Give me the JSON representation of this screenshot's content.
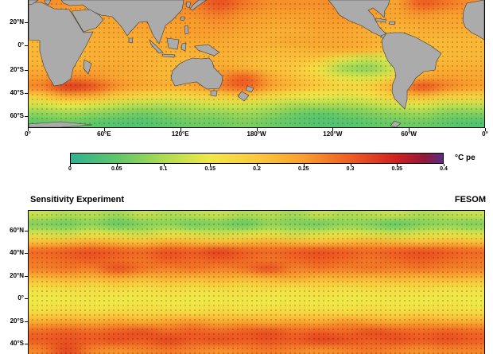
{
  "panel_top": {
    "y_ticks": [
      {
        "label": "20°N",
        "pos": 0.174
      },
      {
        "label": "0°",
        "pos": 0.354
      },
      {
        "label": "20°S",
        "pos": 0.546
      },
      {
        "label": "40°S",
        "pos": 0.727
      },
      {
        "label": "60°S",
        "pos": 0.907
      }
    ],
    "x_ticks": [
      {
        "label": "0°",
        "pos": 0.0
      },
      {
        "label": "60°E",
        "pos": 0.1667
      },
      {
        "label": "120°E",
        "pos": 0.3333
      },
      {
        "label": "180°W",
        "pos": 0.5
      },
      {
        "label": "120°W",
        "pos": 0.6667
      },
      {
        "label": "60°W",
        "pos": 0.8333
      },
      {
        "label": "0°",
        "pos": 1.0
      }
    ]
  },
  "colorbar": {
    "min": 0,
    "max": 0.4,
    "unit_label": "°C pe",
    "ticks": [
      {
        "label": "0",
        "value": 0
      },
      {
        "label": "0.05",
        "value": 0.05
      },
      {
        "label": "0.1",
        "value": 0.1
      },
      {
        "label": "0.15",
        "value": 0.15
      },
      {
        "label": "0.2",
        "value": 0.2
      },
      {
        "label": "0.25",
        "value": 0.25
      },
      {
        "label": "0.3",
        "value": 0.3
      },
      {
        "label": "0.35",
        "value": 0.35
      },
      {
        "label": "0.4",
        "value": 0.4
      }
    ],
    "stops": [
      {
        "v": 0.0,
        "color": "#2db391"
      },
      {
        "v": 0.05,
        "color": "#5fc768"
      },
      {
        "v": 0.1,
        "color": "#aedb52"
      },
      {
        "v": 0.15,
        "color": "#f0e847"
      },
      {
        "v": 0.2,
        "color": "#fbc93c"
      },
      {
        "v": 0.25,
        "color": "#f99e2d"
      },
      {
        "v": 0.3,
        "color": "#ef5d22"
      },
      {
        "v": 0.35,
        "color": "#d1211e"
      },
      {
        "v": 0.38,
        "color": "#93173a"
      },
      {
        "v": 0.4,
        "color": "#5b2b86"
      }
    ]
  },
  "panel_bottom": {
    "title": "Sensitivity Experiment",
    "model_label": "FESOM",
    "y_ticks": [
      {
        "label": "60°N",
        "pos": 0.144
      },
      {
        "label": "40°N",
        "pos": 0.301
      },
      {
        "label": "20°N",
        "pos": 0.458
      },
      {
        "label": "0°",
        "pos": 0.615
      },
      {
        "label": "20°S",
        "pos": 0.772
      },
      {
        "label": "40°S",
        "pos": 0.929
      }
    ]
  },
  "chart_data": [
    {
      "type": "heatmap",
      "panel": "top",
      "title": "",
      "colorbar_label": "°C pe",
      "value_range": [
        0,
        0.4
      ],
      "lon_centers": [
        10,
        30,
        50,
        70,
        90,
        110,
        130,
        150,
        170,
        190,
        210,
        230,
        250,
        270,
        290,
        310,
        330,
        350
      ],
      "lat_centers": [
        36,
        28,
        20,
        12,
        4,
        -4,
        -12,
        -20,
        -28,
        -36,
        -44,
        -52,
        -60,
        -68
      ],
      "grid": [
        [
          0.26,
          0.26,
          0.25,
          0.25,
          0.26,
          0.26,
          0.27,
          0.31,
          0.28,
          0.26,
          0.26,
          0.26,
          0.27,
          0.26,
          0.24,
          0.3,
          0.28,
          0.26
        ],
        [
          0.25,
          0.24,
          0.24,
          0.25,
          0.25,
          0.26,
          0.26,
          0.28,
          0.26,
          0.25,
          0.25,
          0.25,
          0.26,
          0.25,
          0.24,
          0.26,
          0.25,
          0.25
        ],
        [
          0.24,
          0.23,
          0.24,
          0.24,
          0.25,
          0.25,
          0.25,
          0.26,
          0.25,
          0.24,
          0.24,
          0.25,
          0.25,
          0.24,
          0.23,
          0.24,
          0.24,
          0.24
        ],
        [
          0.23,
          0.22,
          0.23,
          0.24,
          0.24,
          0.24,
          0.25,
          0.25,
          0.24,
          0.23,
          0.23,
          0.24,
          0.24,
          0.23,
          0.22,
          0.23,
          0.23,
          0.23
        ],
        [
          0.22,
          0.22,
          0.23,
          0.23,
          0.23,
          0.24,
          0.24,
          0.24,
          0.23,
          0.23,
          0.24,
          0.24,
          0.24,
          0.23,
          0.22,
          0.22,
          0.22,
          0.22
        ],
        [
          0.22,
          0.22,
          0.23,
          0.23,
          0.23,
          0.23,
          0.23,
          0.23,
          0.23,
          0.22,
          0.22,
          0.23,
          0.23,
          0.22,
          0.2,
          0.21,
          0.22,
          0.22
        ],
        [
          0.22,
          0.22,
          0.23,
          0.23,
          0.23,
          0.22,
          0.22,
          0.23,
          0.22,
          0.21,
          0.21,
          0.2,
          0.14,
          0.12,
          0.15,
          0.21,
          0.22,
          0.22
        ],
        [
          0.23,
          0.23,
          0.24,
          0.24,
          0.23,
          0.22,
          0.22,
          0.24,
          0.23,
          0.21,
          0.2,
          0.16,
          0.09,
          0.08,
          0.13,
          0.22,
          0.23,
          0.23
        ],
        [
          0.25,
          0.27,
          0.26,
          0.24,
          0.23,
          0.22,
          0.23,
          0.26,
          0.3,
          0.24,
          0.21,
          0.18,
          0.14,
          0.13,
          0.18,
          0.24,
          0.25,
          0.24
        ],
        [
          0.27,
          0.33,
          0.31,
          0.26,
          0.24,
          0.23,
          0.24,
          0.27,
          0.3,
          0.25,
          0.22,
          0.2,
          0.18,
          0.19,
          0.24,
          0.31,
          0.27,
          0.25
        ],
        [
          0.2,
          0.25,
          0.24,
          0.2,
          0.18,
          0.17,
          0.18,
          0.2,
          0.21,
          0.18,
          0.16,
          0.15,
          0.14,
          0.16,
          0.2,
          0.23,
          0.2,
          0.19
        ],
        [
          0.13,
          0.15,
          0.14,
          0.12,
          0.11,
          0.11,
          0.12,
          0.13,
          0.13,
          0.12,
          0.1,
          0.1,
          0.1,
          0.11,
          0.13,
          0.14,
          0.12,
          0.12
        ],
        [
          0.08,
          0.09,
          0.08,
          0.07,
          0.06,
          0.07,
          0.08,
          0.08,
          0.09,
          0.08,
          0.06,
          0.05,
          0.06,
          0.07,
          0.08,
          0.09,
          0.07,
          0.07
        ],
        [
          0.05,
          0.06,
          0.05,
          0.04,
          0.04,
          0.05,
          0.06,
          0.06,
          0.07,
          0.06,
          0.05,
          0.04,
          0.04,
          0.05,
          0.06,
          0.06,
          0.05,
          0.04
        ]
      ]
    },
    {
      "type": "heatmap",
      "panel": "bottom",
      "title": "Sensitivity Experiment",
      "model": "FESOM",
      "value_range": [
        0,
        0.4
      ],
      "lon_centers": [
        10,
        30,
        50,
        70,
        90,
        110,
        130,
        150,
        170,
        190,
        210,
        230,
        250,
        270,
        290,
        310,
        330,
        350
      ],
      "lat_centers": [
        74,
        66,
        58,
        50,
        42,
        34,
        26,
        18,
        10,
        2,
        -6,
        -14,
        -22,
        -30,
        -38,
        -46
      ],
      "grid": [
        [
          0.12,
          0.1,
          0.11,
          0.09,
          0.12,
          0.1,
          0.11,
          0.12,
          0.1,
          0.11,
          0.09,
          0.12,
          0.1,
          0.11,
          0.12,
          0.1,
          0.11,
          0.12
        ],
        [
          0.07,
          0.06,
          0.08,
          0.05,
          0.07,
          0.08,
          0.06,
          0.07,
          0.05,
          0.08,
          0.07,
          0.06,
          0.08,
          0.07,
          0.05,
          0.07,
          0.08,
          0.07
        ],
        [
          0.13,
          0.12,
          0.14,
          0.13,
          0.12,
          0.14,
          0.13,
          0.12,
          0.13,
          0.14,
          0.12,
          0.13,
          0.14,
          0.13,
          0.12,
          0.13,
          0.14,
          0.13
        ],
        [
          0.21,
          0.22,
          0.23,
          0.22,
          0.21,
          0.23,
          0.22,
          0.21,
          0.22,
          0.23,
          0.22,
          0.21,
          0.22,
          0.23,
          0.22,
          0.21,
          0.22,
          0.21
        ],
        [
          0.29,
          0.3,
          0.31,
          0.3,
          0.29,
          0.31,
          0.3,
          0.32,
          0.3,
          0.29,
          0.3,
          0.31,
          0.3,
          0.29,
          0.3,
          0.31,
          0.3,
          0.29
        ],
        [
          0.28,
          0.29,
          0.3,
          0.29,
          0.28,
          0.3,
          0.29,
          0.3,
          0.29,
          0.28,
          0.29,
          0.3,
          0.29,
          0.28,
          0.29,
          0.3,
          0.29,
          0.28
        ],
        [
          0.27,
          0.28,
          0.27,
          0.31,
          0.28,
          0.27,
          0.28,
          0.27,
          0.28,
          0.31,
          0.27,
          0.28,
          0.27,
          0.28,
          0.27,
          0.28,
          0.27,
          0.27
        ],
        [
          0.22,
          0.23,
          0.22,
          0.24,
          0.22,
          0.23,
          0.22,
          0.23,
          0.22,
          0.23,
          0.24,
          0.22,
          0.23,
          0.22,
          0.23,
          0.22,
          0.23,
          0.22
        ],
        [
          0.17,
          0.18,
          0.17,
          0.18,
          0.17,
          0.18,
          0.17,
          0.18,
          0.17,
          0.18,
          0.17,
          0.18,
          0.17,
          0.18,
          0.17,
          0.18,
          0.17,
          0.17
        ],
        [
          0.15,
          0.15,
          0.16,
          0.15,
          0.15,
          0.16,
          0.15,
          0.15,
          0.16,
          0.15,
          0.15,
          0.16,
          0.15,
          0.15,
          0.16,
          0.15,
          0.15,
          0.15
        ],
        [
          0.15,
          0.16,
          0.15,
          0.15,
          0.16,
          0.15,
          0.15,
          0.16,
          0.15,
          0.15,
          0.16,
          0.15,
          0.15,
          0.16,
          0.15,
          0.15,
          0.16,
          0.15
        ],
        [
          0.18,
          0.19,
          0.18,
          0.19,
          0.18,
          0.19,
          0.18,
          0.19,
          0.18,
          0.19,
          0.18,
          0.19,
          0.18,
          0.19,
          0.18,
          0.19,
          0.18,
          0.18
        ],
        [
          0.24,
          0.25,
          0.24,
          0.25,
          0.24,
          0.25,
          0.26,
          0.24,
          0.25,
          0.24,
          0.25,
          0.24,
          0.26,
          0.25,
          0.24,
          0.25,
          0.24,
          0.24
        ],
        [
          0.29,
          0.3,
          0.29,
          0.3,
          0.31,
          0.29,
          0.3,
          0.29,
          0.3,
          0.31,
          0.29,
          0.3,
          0.29,
          0.31,
          0.3,
          0.29,
          0.3,
          0.29
        ],
        [
          0.3,
          0.31,
          0.3,
          0.31,
          0.3,
          0.32,
          0.3,
          0.31,
          0.3,
          0.31,
          0.3,
          0.32,
          0.31,
          0.3,
          0.31,
          0.3,
          0.31,
          0.3
        ],
        [
          0.27,
          0.32,
          0.27,
          0.26,
          0.27,
          0.28,
          0.27,
          0.26,
          0.27,
          0.28,
          0.27,
          0.26,
          0.27,
          0.28,
          0.27,
          0.26,
          0.27,
          0.27
        ]
      ]
    }
  ]
}
